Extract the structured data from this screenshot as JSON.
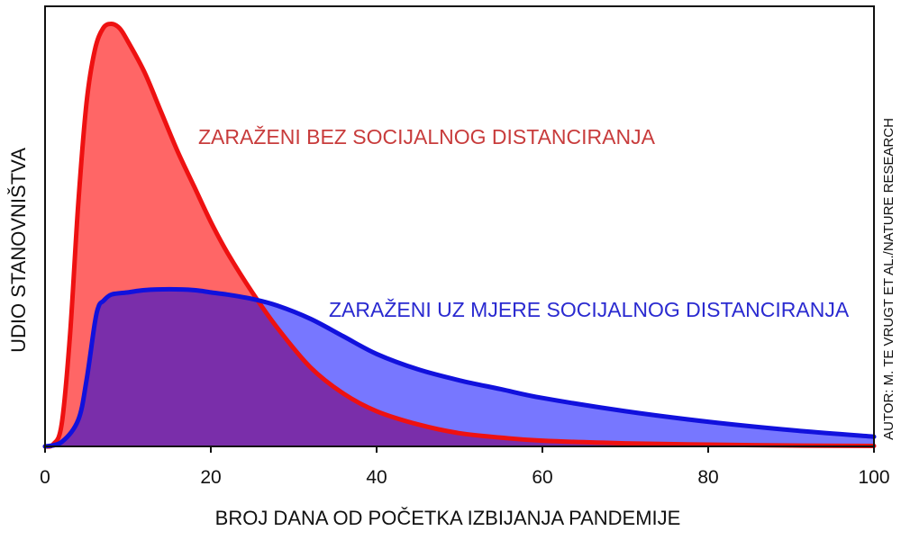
{
  "chart_data": {
    "type": "area",
    "xlabel": "BROJ DANA OD POČETKA IZBIJANJA PANDEMIJE",
    "ylabel": "UDIO STANOVNIŠTVA",
    "credit": "AUTOR: M. TE VRUGT ET AL./NATURE RESEARCH",
    "xlim": [
      0,
      100
    ],
    "ylim": [
      0,
      1.0
    ],
    "xticks": [
      "0",
      "20",
      "40",
      "60",
      "80",
      "100"
    ],
    "yticks_shown": false,
    "grid": false,
    "legend": "none",
    "series": [
      {
        "name": "ZARAŽENI BEZ SOCIJALNOG DISTANCIRANJA",
        "line_color": "#ee1111",
        "fill_color": "#ff6666",
        "x": [
          0,
          1,
          2,
          3,
          4,
          5,
          6,
          7,
          8,
          9,
          10,
          12,
          14,
          16,
          18,
          20,
          22,
          25,
          28,
          32,
          36,
          40,
          45,
          50,
          55,
          60,
          70,
          80,
          90,
          100
        ],
        "y": [
          0,
          0.005,
          0.05,
          0.25,
          0.55,
          0.78,
          0.9,
          0.95,
          0.96,
          0.95,
          0.92,
          0.85,
          0.76,
          0.67,
          0.59,
          0.51,
          0.44,
          0.35,
          0.27,
          0.18,
          0.12,
          0.08,
          0.05,
          0.03,
          0.02,
          0.013,
          0.007,
          0.004,
          0.002,
          0.001
        ]
      },
      {
        "name": "ZARAŽENI UZ MJERE SOCIJALNOG DISTANCIRANJA",
        "line_color": "#1111dd",
        "fill_color": "#7777ff",
        "x": [
          0,
          2,
          4,
          5,
          6,
          6.5,
          7,
          8,
          10,
          12,
          15,
          18,
          20,
          22,
          25,
          28,
          32,
          36,
          40,
          45,
          50,
          55,
          60,
          70,
          80,
          90,
          100
        ],
        "y": [
          0,
          0.01,
          0.06,
          0.15,
          0.28,
          0.32,
          0.33,
          0.345,
          0.35,
          0.355,
          0.357,
          0.355,
          0.35,
          0.345,
          0.335,
          0.32,
          0.29,
          0.25,
          0.21,
          0.175,
          0.15,
          0.13,
          0.11,
          0.08,
          0.056,
          0.037,
          0.022
        ]
      }
    ],
    "overlap_fill_color": "#7a2eaa"
  }
}
